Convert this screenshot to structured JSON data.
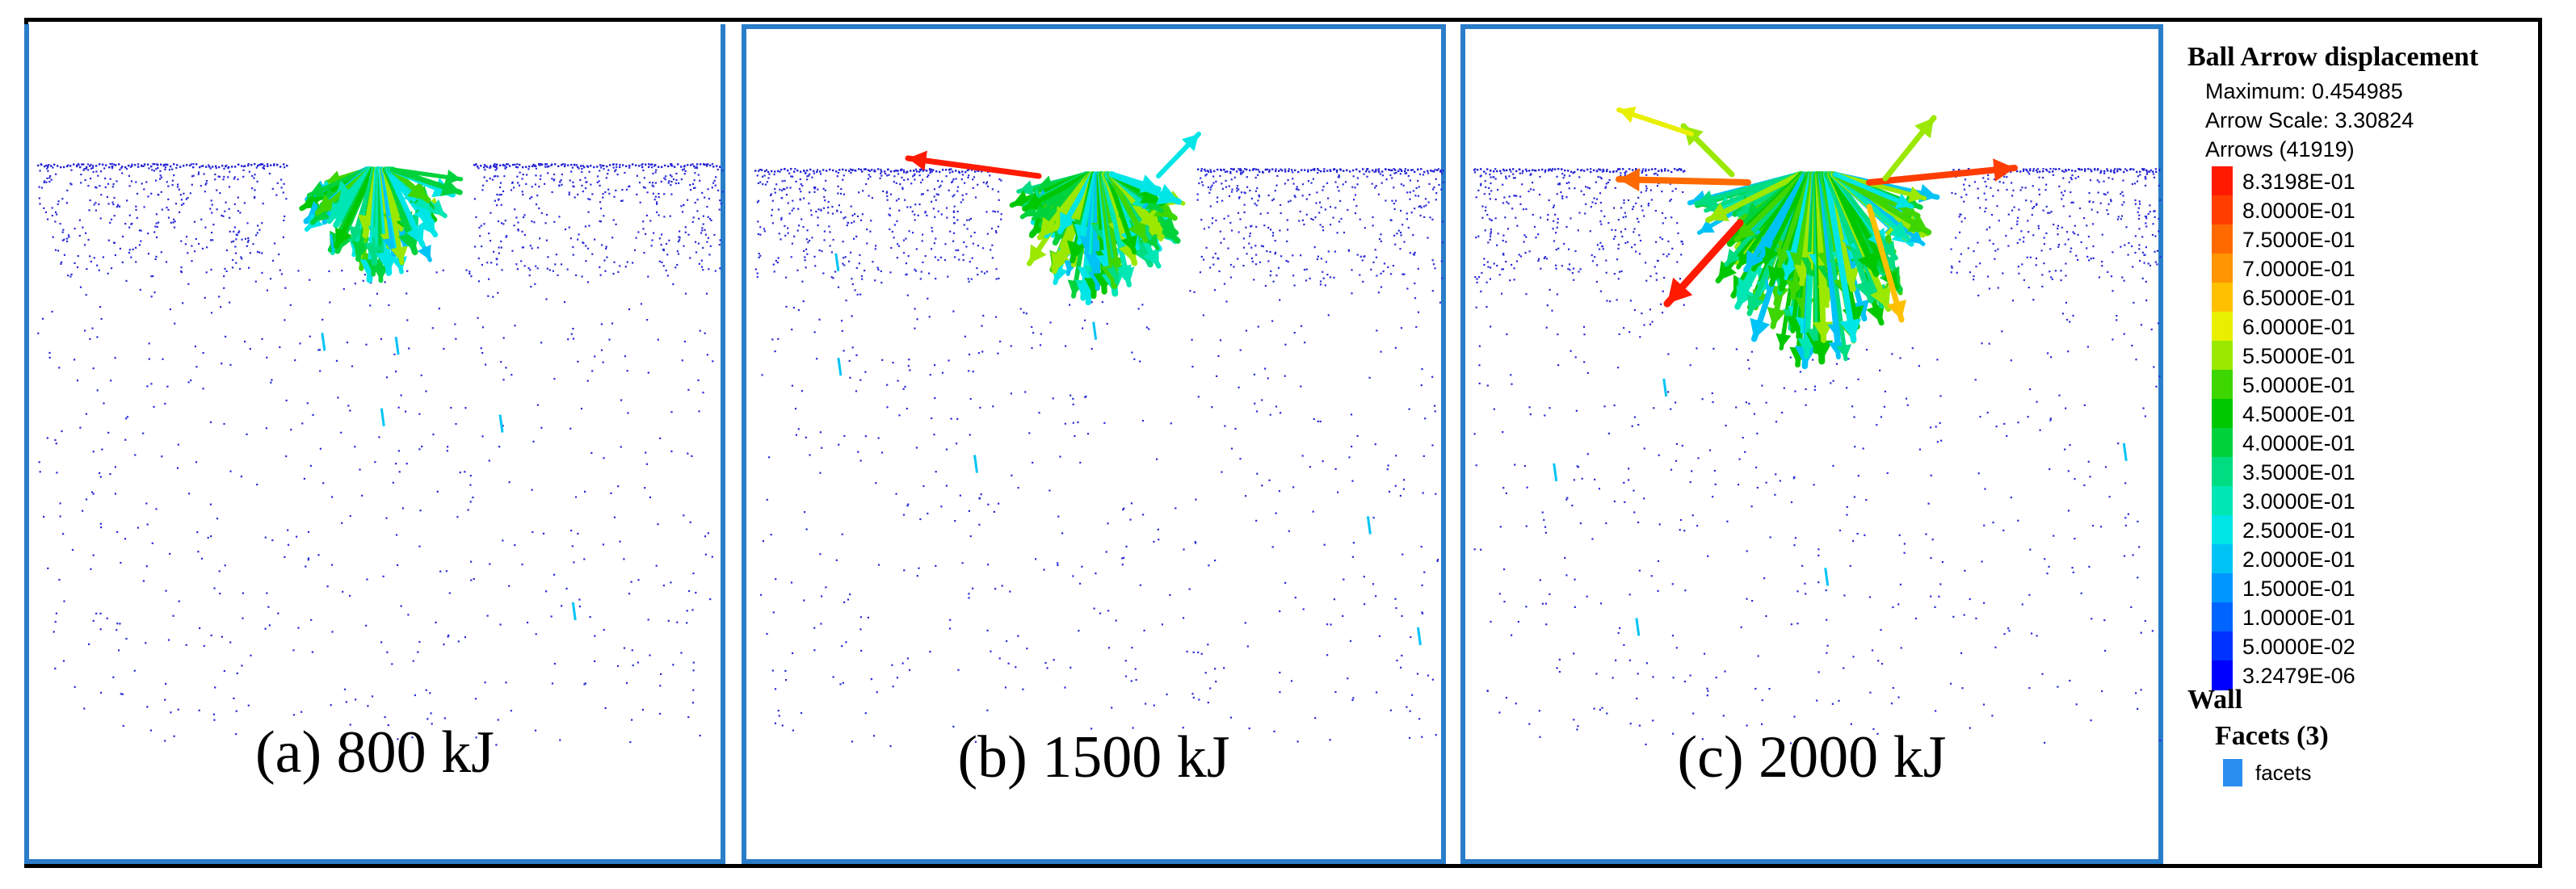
{
  "panels": [
    {
      "id": "a",
      "caption": "(a) 800 kJ"
    },
    {
      "id": "b",
      "caption": "(b) 1500 kJ"
    },
    {
      "id": "c",
      "caption": "(c) 2000 kJ"
    }
  ],
  "legend": {
    "title": "Ball Arrow displacement",
    "maximum": "Maximum: 0.454985",
    "arrow_scale": "Arrow Scale: 3.30824",
    "arrows": "Arrows (41919)",
    "entries": [
      {
        "label": "8.3198E-01",
        "color": "#ff1a00"
      },
      {
        "label": "8.0000E-01",
        "color": "#ff3d00"
      },
      {
        "label": "7.5000E-01",
        "color": "#ff6a00"
      },
      {
        "label": "7.0000E-01",
        "color": "#ff9500"
      },
      {
        "label": "6.5000E-01",
        "color": "#ffc000"
      },
      {
        "label": "6.0000E-01",
        "color": "#e8f000"
      },
      {
        "label": "5.5000E-01",
        "color": "#9be800"
      },
      {
        "label": "5.0000E-01",
        "color": "#3ed600"
      },
      {
        "label": "4.5000E-01",
        "color": "#00c800"
      },
      {
        "label": "4.0000E-01",
        "color": "#00d23c"
      },
      {
        "label": "3.5000E-01",
        "color": "#00dc82"
      },
      {
        "label": "3.0000E-01",
        "color": "#00e6b4"
      },
      {
        "label": "2.5000E-01",
        "color": "#00e6e6"
      },
      {
        "label": "2.0000E-01",
        "color": "#00c3f5"
      },
      {
        "label": "1.5000E-01",
        "color": "#0096ff"
      },
      {
        "label": "1.0000E-01",
        "color": "#0064ff"
      },
      {
        "label": "5.0000E-02",
        "color": "#0032ff"
      },
      {
        "label": "3.2479E-06",
        "color": "#0000ff"
      }
    ],
    "wall": "Wall",
    "facets_title": "Facets (3)",
    "facet_label": "facets",
    "facet_color": "#2a8ef0"
  }
}
